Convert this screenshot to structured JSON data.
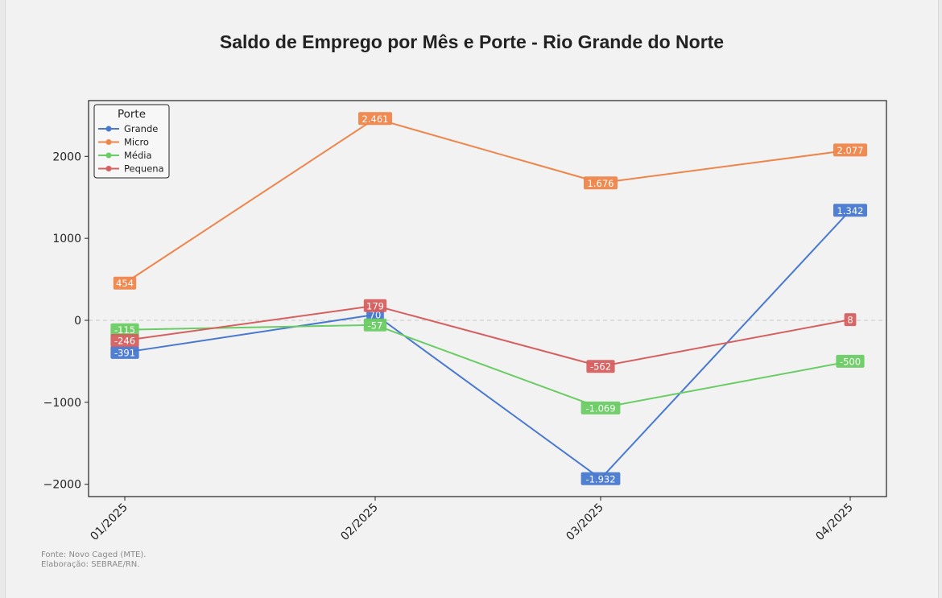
{
  "chart_data": {
    "type": "line",
    "title": "Saldo de Emprego por Mês e Porte - Rio Grande do Norte",
    "xlabel": "",
    "ylabel": "",
    "categories": [
      "01/2025",
      "02/2025",
      "03/2025",
      "04/2025"
    ],
    "ylim": [
      -2150,
      2680
    ],
    "yticks": [
      -2000,
      -1000,
      0,
      1000,
      2000
    ],
    "ytick_labels": [
      "−2000",
      "−1000",
      "0",
      "1000",
      "2000"
    ],
    "grid": false,
    "zero_line": true,
    "legend_title": "Porte",
    "legend_position": "top-left",
    "series": [
      {
        "name": "Grande",
        "color": "#4878d0",
        "values": [
          -391,
          70,
          -1932,
          1342
        ],
        "labels": [
          "-391",
          "70",
          "-1.932",
          "1.342"
        ]
      },
      {
        "name": "Micro",
        "color": "#ee854a",
        "values": [
          454,
          2461,
          1676,
          2077
        ],
        "labels": [
          "454",
          "2.461",
          "1.676",
          "2.077"
        ]
      },
      {
        "name": "Média",
        "color": "#6acc64",
        "values": [
          -115,
          -57,
          -1069,
          -500
        ],
        "labels": [
          "-115",
          "-57",
          "-1.069",
          "-500"
        ]
      },
      {
        "name": "Pequena",
        "color": "#d65f5f",
        "values": [
          -246,
          179,
          -562,
          8
        ],
        "labels": [
          "-246",
          "179",
          "-562",
          "8"
        ]
      }
    ]
  },
  "footer": {
    "source": "Fonte: Novo Caged (MTE).",
    "credit": "Elaboração: SEBRAE/RN."
  }
}
